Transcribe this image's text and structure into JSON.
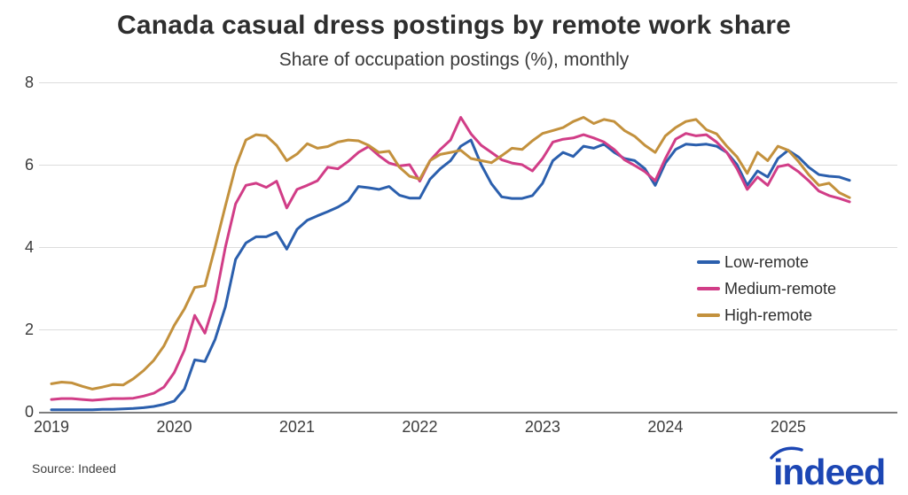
{
  "header": {
    "title": "Canada casual dress postings by remote work share",
    "subtitle": "Share of occupation postings (%), monthly"
  },
  "chart_data": {
    "type": "line",
    "title": "Canada casual dress postings by remote work share",
    "subtitle": "Share of occupation postings (%), monthly",
    "frequency": "monthly",
    "x_start": "2019-01",
    "x_end": "2025-07",
    "x_tick_labels": [
      "2019",
      "2020",
      "2021",
      "2022",
      "2023",
      "2024",
      "2025"
    ],
    "y_ticks": [
      0,
      2,
      4,
      6,
      8
    ],
    "ylim": [
      0,
      8
    ],
    "grid": "horizontal",
    "legend_position": "middle-right",
    "series": [
      {
        "name": "Low-remote",
        "color": "#2b5fad",
        "values": [
          0.05,
          0.05,
          0.05,
          0.05,
          0.05,
          0.06,
          0.06,
          0.07,
          0.08,
          0.1,
          0.13,
          0.18,
          0.26,
          0.55,
          1.26,
          1.22,
          1.76,
          2.55,
          3.7,
          4.1,
          4.25,
          4.25,
          4.36,
          3.95,
          4.43,
          4.65,
          4.76,
          4.86,
          4.97,
          5.12,
          5.47,
          5.44,
          5.4,
          5.47,
          5.26,
          5.19,
          5.19,
          5.65,
          5.9,
          6.1,
          6.45,
          6.6,
          6.0,
          5.54,
          5.22,
          5.18,
          5.18,
          5.25,
          5.55,
          6.1,
          6.3,
          6.2,
          6.45,
          6.4,
          6.5,
          6.3,
          6.15,
          6.1,
          5.9,
          5.5,
          6.04,
          6.37,
          6.5,
          6.48,
          6.5,
          6.45,
          6.3,
          6.0,
          5.5,
          5.85,
          5.7,
          6.15,
          6.35,
          6.19,
          5.94,
          5.76,
          5.72,
          5.7,
          5.62
        ]
      },
      {
        "name": "Medium-remote",
        "color": "#d13d87",
        "values": [
          0.3,
          0.32,
          0.32,
          0.3,
          0.28,
          0.3,
          0.32,
          0.32,
          0.33,
          0.38,
          0.45,
          0.6,
          0.95,
          1.5,
          2.34,
          1.91,
          2.7,
          4.0,
          5.05,
          5.5,
          5.55,
          5.45,
          5.6,
          4.95,
          5.4,
          5.5,
          5.61,
          5.94,
          5.9,
          6.08,
          6.3,
          6.44,
          6.22,
          6.04,
          5.97,
          6.0,
          5.6,
          6.1,
          6.37,
          6.6,
          7.15,
          6.75,
          6.47,
          6.3,
          6.12,
          6.04,
          6.0,
          5.85,
          6.15,
          6.55,
          6.62,
          6.65,
          6.73,
          6.65,
          6.55,
          6.37,
          6.12,
          5.98,
          5.83,
          5.61,
          6.15,
          6.62,
          6.76,
          6.7,
          6.73,
          6.55,
          6.3,
          5.9,
          5.4,
          5.7,
          5.5,
          5.95,
          6.0,
          5.83,
          5.61,
          5.36,
          5.25,
          5.18,
          5.1
        ]
      },
      {
        "name": "High-remote",
        "color": "#c3913d",
        "values": [
          0.68,
          0.72,
          0.7,
          0.62,
          0.55,
          0.6,
          0.66,
          0.65,
          0.8,
          1.0,
          1.25,
          1.6,
          2.1,
          2.5,
          3.02,
          3.06,
          4.0,
          5.0,
          5.95,
          6.6,
          6.73,
          6.7,
          6.47,
          6.1,
          6.26,
          6.51,
          6.4,
          6.44,
          6.55,
          6.6,
          6.58,
          6.47,
          6.3,
          6.33,
          5.94,
          5.72,
          5.65,
          6.1,
          6.25,
          6.3,
          6.35,
          6.15,
          6.1,
          6.05,
          6.22,
          6.4,
          6.37,
          6.58,
          6.76,
          6.83,
          6.9,
          7.05,
          7.15,
          7.0,
          7.1,
          7.05,
          6.83,
          6.69,
          6.47,
          6.3,
          6.7,
          6.9,
          7.05,
          7.1,
          6.85,
          6.75,
          6.45,
          6.19,
          5.79,
          6.3,
          6.1,
          6.45,
          6.35,
          6.08,
          5.76,
          5.5,
          5.55,
          5.32,
          5.2
        ]
      }
    ]
  },
  "legend": {
    "items": [
      "Low-remote",
      "Medium-remote",
      "High-remote"
    ]
  },
  "footer": {
    "source": "Source: Indeed",
    "logo_text": "indeed",
    "logo_color": "#1c46b4"
  }
}
